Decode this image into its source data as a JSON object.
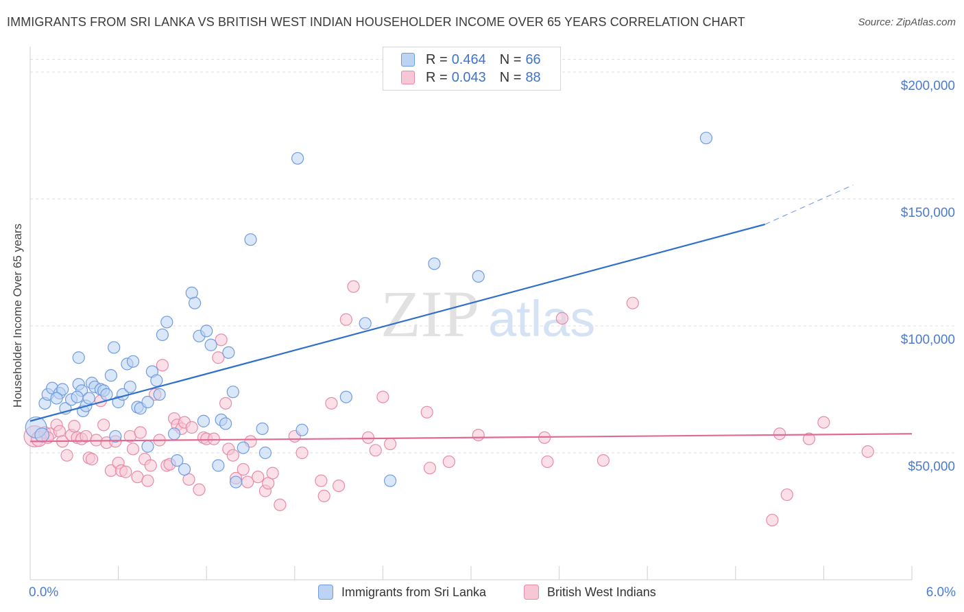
{
  "title": "IMMIGRANTS FROM SRI LANKA VS BRITISH WEST INDIAN HOUSEHOLDER INCOME OVER 65 YEARS CORRELATION CHART",
  "source": "Source: ZipAtlas.com",
  "watermark": {
    "zip": "ZIP",
    "atlas": "atlas"
  },
  "legend": {
    "series1": {
      "r_label": "R = ",
      "r_value": "0.464",
      "n_label": "N = ",
      "n_value": "66"
    },
    "series2": {
      "r_label": "R = ",
      "r_value": "0.043",
      "n_label": "N = ",
      "n_value": "88"
    }
  },
  "chart_data": {
    "type": "scatter",
    "title": "IMMIGRANTS FROM SRI LANKA VS BRITISH WEST INDIAN HOUSEHOLDER INCOME OVER 65 YEARS CORRELATION CHART",
    "xlabel": "",
    "ylabel": "Householder Income Over 65 years",
    "xlim": [
      0,
      6
    ],
    "ylim": [
      0,
      210000
    ],
    "x_tick_labels": [
      "0.0%",
      "6.0%"
    ],
    "y_ticks": [
      50000,
      100000,
      150000,
      200000
    ],
    "y_tick_labels": [
      "$50,000",
      "$100,000",
      "$150,000",
      "$200,000"
    ],
    "grid": "horizontal dashed",
    "legend_position": "top-center and bottom",
    "series": [
      {
        "name": "Immigrants from Sri Lanka",
        "color": "#6f9be0",
        "fill": "#bcd3f4",
        "trend": {
          "x": [
            0,
            5.0
          ],
          "y": [
            62500,
            140000
          ],
          "dashed_to": [
            5.6,
            155500
          ]
        },
        "points": [
          [
            0.04,
            60000,
            1.8
          ],
          [
            0.08,
            57000,
            1.2
          ],
          [
            0.1,
            69500,
            1
          ],
          [
            0.12,
            73000,
            1
          ],
          [
            0.15,
            75500,
            1
          ],
          [
            0.2,
            73500,
            1
          ],
          [
            0.22,
            75000,
            1
          ],
          [
            0.24,
            67500,
            1
          ],
          [
            0.28,
            71000,
            1
          ],
          [
            0.33,
            77000,
            1
          ],
          [
            0.35,
            74500,
            1
          ],
          [
            0.33,
            87500,
            1
          ],
          [
            0.36,
            66500,
            1
          ],
          [
            0.38,
            68500,
            1
          ],
          [
            0.4,
            71500,
            1
          ],
          [
            0.42,
            77500,
            1
          ],
          [
            0.44,
            76000,
            1
          ],
          [
            0.48,
            75000,
            1
          ],
          [
            0.5,
            74500,
            1
          ],
          [
            0.52,
            73000,
            1
          ],
          [
            0.55,
            80500,
            1
          ],
          [
            0.57,
            91500,
            1
          ],
          [
            0.6,
            70000,
            1
          ],
          [
            0.63,
            73000,
            1
          ],
          [
            0.66,
            85000,
            1
          ],
          [
            0.68,
            76000,
            1
          ],
          [
            0.7,
            86000,
            1
          ],
          [
            0.73,
            68000,
            1
          ],
          [
            0.75,
            67500,
            1
          ],
          [
            0.8,
            70000,
            1
          ],
          [
            0.83,
            82000,
            1
          ],
          [
            0.86,
            78500,
            1
          ],
          [
            0.88,
            73000,
            1
          ],
          [
            0.9,
            96500,
            1
          ],
          [
            0.93,
            101500,
            1
          ],
          [
            0.98,
            57500,
            1
          ],
          [
            1.0,
            47000,
            1
          ],
          [
            1.05,
            43500,
            1
          ],
          [
            1.1,
            113000,
            1
          ],
          [
            1.12,
            109000,
            1
          ],
          [
            1.15,
            96000,
            1
          ],
          [
            1.18,
            62500,
            1
          ],
          [
            1.2,
            98000,
            1
          ],
          [
            1.23,
            92500,
            1
          ],
          [
            1.28,
            45000,
            1
          ],
          [
            1.3,
            63000,
            1
          ],
          [
            1.33,
            61500,
            1
          ],
          [
            1.35,
            89500,
            1
          ],
          [
            1.38,
            74000,
            1
          ],
          [
            1.4,
            38500,
            1
          ],
          [
            1.45,
            52000,
            1
          ],
          [
            1.5,
            134000,
            1
          ],
          [
            1.58,
            59500,
            1
          ],
          [
            1.6,
            50000,
            1
          ],
          [
            1.82,
            166000,
            1
          ],
          [
            1.85,
            59000,
            1
          ],
          [
            2.15,
            72000,
            1
          ],
          [
            2.28,
            101000,
            1
          ],
          [
            2.45,
            39000,
            1
          ],
          [
            2.75,
            124500,
            1
          ],
          [
            3.05,
            119500,
            1
          ],
          [
            4.6,
            174000,
            1
          ],
          [
            0.58,
            56500,
            1
          ],
          [
            0.8,
            52500,
            1
          ],
          [
            0.32,
            72000,
            1
          ],
          [
            0.18,
            71500,
            1
          ]
        ]
      },
      {
        "name": "British West Indians",
        "color": "#e88aa8",
        "fill": "#f8c7d6",
        "trend": {
          "x": [
            0,
            6.0
          ],
          "y": [
            54500,
            57500
          ]
        },
        "points": [
          [
            0.03,
            56500,
            1.8
          ],
          [
            0.06,
            55500,
            1.3
          ],
          [
            0.1,
            58000,
            1
          ],
          [
            0.14,
            57500,
            1
          ],
          [
            0.18,
            61000,
            1
          ],
          [
            0.2,
            58500,
            1
          ],
          [
            0.22,
            54500,
            1
          ],
          [
            0.25,
            49000,
            1
          ],
          [
            0.28,
            57000,
            1
          ],
          [
            0.3,
            60500,
            1
          ],
          [
            0.32,
            56000,
            1
          ],
          [
            0.35,
            55500,
            1
          ],
          [
            0.38,
            56500,
            1
          ],
          [
            0.4,
            48000,
            1
          ],
          [
            0.42,
            47500,
            1
          ],
          [
            0.45,
            55000,
            1
          ],
          [
            0.48,
            70500,
            1
          ],
          [
            0.5,
            61000,
            1
          ],
          [
            0.52,
            54000,
            1
          ],
          [
            0.55,
            43000,
            1
          ],
          [
            0.58,
            54500,
            1
          ],
          [
            0.6,
            46000,
            1
          ],
          [
            0.62,
            43000,
            1
          ],
          [
            0.65,
            42500,
            1
          ],
          [
            0.68,
            56500,
            1
          ],
          [
            0.7,
            51500,
            1
          ],
          [
            0.73,
            40500,
            1
          ],
          [
            0.75,
            58000,
            1
          ],
          [
            0.78,
            47500,
            1
          ],
          [
            0.8,
            39000,
            1
          ],
          [
            0.82,
            45000,
            1
          ],
          [
            0.85,
            73000,
            1
          ],
          [
            0.88,
            55000,
            1
          ],
          [
            0.9,
            84500,
            1
          ],
          [
            0.93,
            45000,
            1
          ],
          [
            0.95,
            45500,
            1
          ],
          [
            0.98,
            63500,
            1
          ],
          [
            1.0,
            61000,
            1
          ],
          [
            1.03,
            59500,
            1
          ],
          [
            1.05,
            62000,
            1
          ],
          [
            1.08,
            39500,
            1
          ],
          [
            1.1,
            60000,
            1
          ],
          [
            1.15,
            35500,
            1
          ],
          [
            1.18,
            56000,
            1
          ],
          [
            1.2,
            55500,
            1
          ],
          [
            1.25,
            55500,
            1
          ],
          [
            1.28,
            87500,
            1
          ],
          [
            1.3,
            94500,
            1
          ],
          [
            1.33,
            69500,
            1
          ],
          [
            1.35,
            51500,
            1
          ],
          [
            1.38,
            49000,
            1
          ],
          [
            1.4,
            40000,
            1
          ],
          [
            1.45,
            43500,
            1
          ],
          [
            1.48,
            38500,
            1
          ],
          [
            1.5,
            54500,
            1
          ],
          [
            1.55,
            40500,
            1
          ],
          [
            1.6,
            35000,
            1
          ],
          [
            1.62,
            38000,
            1
          ],
          [
            1.65,
            42000,
            1
          ],
          [
            1.7,
            29500,
            1
          ],
          [
            1.8,
            56500,
            1
          ],
          [
            1.85,
            50000,
            1
          ],
          [
            1.98,
            39000,
            1
          ],
          [
            2.0,
            33000,
            1
          ],
          [
            2.05,
            69500,
            1
          ],
          [
            2.1,
            37000,
            1
          ],
          [
            2.15,
            102500,
            1
          ],
          [
            2.2,
            115500,
            1
          ],
          [
            2.3,
            56000,
            1
          ],
          [
            2.35,
            51000,
            1
          ],
          [
            2.4,
            72000,
            1
          ],
          [
            2.45,
            53500,
            1
          ],
          [
            2.7,
            66000,
            1
          ],
          [
            2.72,
            44000,
            1
          ],
          [
            2.85,
            46500,
            1
          ],
          [
            3.05,
            57000,
            1
          ],
          [
            3.5,
            56000,
            1
          ],
          [
            3.52,
            46500,
            1
          ],
          [
            3.62,
            103000,
            1
          ],
          [
            3.9,
            47000,
            1
          ],
          [
            4.1,
            109000,
            1
          ],
          [
            5.05,
            23500,
            1
          ],
          [
            5.1,
            57500,
            1
          ],
          [
            5.15,
            33500,
            1
          ],
          [
            5.3,
            55500,
            1
          ],
          [
            5.4,
            62000,
            1
          ],
          [
            5.7,
            50500,
            1
          ],
          [
            0.12,
            56000,
            1
          ]
        ]
      }
    ]
  },
  "bottom_legend": [
    "Immigrants from Sri Lanka",
    "British West Indians"
  ]
}
